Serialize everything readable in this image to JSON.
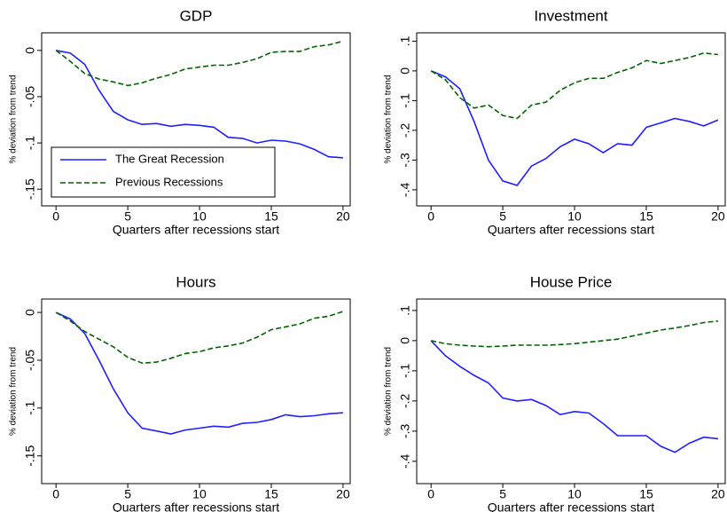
{
  "chart_data": [
    {
      "type": "line",
      "title": "GDP",
      "xlabel": "Quarters after recessions start",
      "ylabel": "% deviation from trend",
      "x": [
        0,
        1,
        2,
        3,
        4,
        5,
        6,
        7,
        8,
        9,
        10,
        11,
        12,
        13,
        14,
        15,
        16,
        17,
        18,
        19,
        20
      ],
      "series": [
        {
          "name": "The Great Recession",
          "color": "#1f1fff",
          "style": "solid",
          "values": [
            0,
            -0.003,
            -0.015,
            -0.043,
            -0.066,
            -0.075,
            -0.08,
            -0.079,
            -0.082,
            -0.08,
            -0.081,
            -0.083,
            -0.094,
            -0.095,
            -0.1,
            -0.097,
            -0.098,
            -0.101,
            -0.107,
            -0.115,
            -0.116
          ]
        },
        {
          "name": "Previous Recessions",
          "color": "#006400",
          "style": "dashed",
          "values": [
            0,
            -0.012,
            -0.025,
            -0.031,
            -0.034,
            -0.038,
            -0.035,
            -0.03,
            -0.026,
            -0.02,
            -0.018,
            -0.016,
            -0.016,
            -0.013,
            -0.009,
            -0.002,
            -0.001,
            -0.001,
            0.004,
            0.006,
            0.01
          ]
        }
      ],
      "xlim": [
        -1,
        20.5
      ],
      "xticks": [
        0,
        5,
        10,
        15,
        20
      ],
      "ylim": [
        -0.168,
        0.019
      ],
      "yticks": [
        0,
        {
          "value": -0.05,
          "label": "-.05"
        },
        {
          "value": -0.1,
          "label": "-.1"
        },
        {
          "value": -0.15,
          "label": "-.15"
        }
      ],
      "legend": "bottom-left"
    },
    {
      "type": "line",
      "title": "Investment",
      "xlabel": "Quarters after recessions start",
      "ylabel": "% deviation from trend",
      "x": [
        0,
        1,
        2,
        3,
        4,
        5,
        6,
        7,
        8,
        9,
        10,
        11,
        12,
        13,
        14,
        15,
        16,
        17,
        18,
        19,
        20
      ],
      "series": [
        {
          "color": "#1f1fff",
          "style": "solid",
          "values": [
            0,
            -0.02,
            -0.06,
            -0.17,
            -0.3,
            -0.37,
            -0.385,
            -0.32,
            -0.295,
            -0.255,
            -0.23,
            -0.245,
            -0.275,
            -0.245,
            -0.25,
            -0.19,
            -0.175,
            -0.16,
            -0.17,
            -0.185,
            -0.165
          ]
        },
        {
          "color": "#006400",
          "style": "dashed",
          "values": [
            0,
            -0.03,
            -0.09,
            -0.125,
            -0.115,
            -0.15,
            -0.16,
            -0.115,
            -0.105,
            -0.065,
            -0.04,
            -0.025,
            -0.025,
            -0.005,
            0.01,
            0.035,
            0.025,
            0.035,
            0.045,
            0.06,
            0.055
          ]
        }
      ],
      "xlim": [
        -1,
        20.5
      ],
      "xticks": [
        0,
        5,
        10,
        15,
        20
      ],
      "ylim": [
        -0.454,
        0.128
      ],
      "yticks": [
        {
          "value": 0.1,
          "label": ".1"
        },
        0,
        {
          "value": -0.1,
          "label": "-.1"
        },
        {
          "value": -0.2,
          "label": "-.2"
        },
        {
          "value": -0.3,
          "label": "-.3"
        },
        {
          "value": -0.4,
          "label": "-.4"
        }
      ]
    },
    {
      "type": "line",
      "title": "Hours",
      "xlabel": "Quarters after recessions start",
      "ylabel": "% deviation from trend",
      "x": [
        0,
        1,
        2,
        3,
        4,
        5,
        6,
        7,
        8,
        9,
        10,
        11,
        12,
        13,
        14,
        15,
        16,
        17,
        18,
        19,
        20
      ],
      "series": [
        {
          "color": "#1f1fff",
          "style": "solid",
          "values": [
            0,
            -0.007,
            -0.022,
            -0.05,
            -0.08,
            -0.105,
            -0.121,
            -0.124,
            -0.127,
            -0.123,
            -0.121,
            -0.119,
            -0.12,
            -0.116,
            -0.115,
            -0.112,
            -0.107,
            -0.109,
            -0.108,
            -0.106,
            -0.105
          ]
        },
        {
          "color": "#006400",
          "style": "dashed",
          "values": [
            0,
            -0.009,
            -0.02,
            -0.028,
            -0.036,
            -0.047,
            -0.053,
            -0.052,
            -0.048,
            -0.043,
            -0.041,
            -0.037,
            -0.035,
            -0.032,
            -0.026,
            -0.018,
            -0.015,
            -0.012,
            -0.006,
            -0.004,
            0.001
          ]
        }
      ],
      "xlim": [
        -1,
        20.5
      ],
      "xticks": [
        0,
        5,
        10,
        15,
        20
      ],
      "ylim": [
        -0.179,
        0.014
      ],
      "yticks": [
        0,
        {
          "value": -0.05,
          "label": "-.05"
        },
        {
          "value": -0.1,
          "label": "-.1"
        },
        {
          "value": -0.15,
          "label": "-.15"
        }
      ]
    },
    {
      "type": "line",
      "title": "House Price",
      "xlabel": "Quarters after recessions start",
      "ylabel": "% deviation from trend",
      "x": [
        0,
        1,
        2,
        3,
        4,
        5,
        6,
        7,
        8,
        9,
        10,
        11,
        12,
        13,
        14,
        15,
        16,
        17,
        18,
        19,
        20
      ],
      "series": [
        {
          "color": "#1f1fff",
          "style": "solid",
          "values": [
            0,
            -0.05,
            -0.085,
            -0.115,
            -0.14,
            -0.19,
            -0.2,
            -0.195,
            -0.215,
            -0.245,
            -0.235,
            -0.24,
            -0.275,
            -0.315,
            -0.315,
            -0.315,
            -0.35,
            -0.37,
            -0.34,
            -0.32,
            -0.325
          ]
        },
        {
          "color": "#006400",
          "style": "dashed",
          "values": [
            0,
            -0.01,
            -0.015,
            -0.018,
            -0.02,
            -0.018,
            -0.015,
            -0.015,
            -0.015,
            -0.013,
            -0.01,
            -0.005,
            0,
            0.005,
            0.015,
            0.025,
            0.035,
            0.042,
            0.05,
            0.06,
            0.065
          ]
        }
      ],
      "xlim": [
        -1,
        20.5
      ],
      "xticks": [
        0,
        5,
        10,
        15,
        20
      ],
      "ylim": [
        -0.474,
        0.138
      ],
      "yticks": [
        {
          "value": 0.1,
          "label": ".1"
        },
        0,
        {
          "value": -0.1,
          "label": "-.1"
        },
        {
          "value": -0.2,
          "label": "-.2"
        },
        {
          "value": -0.3,
          "label": "-.3"
        },
        {
          "value": -0.4,
          "label": "-.4"
        }
      ]
    }
  ]
}
